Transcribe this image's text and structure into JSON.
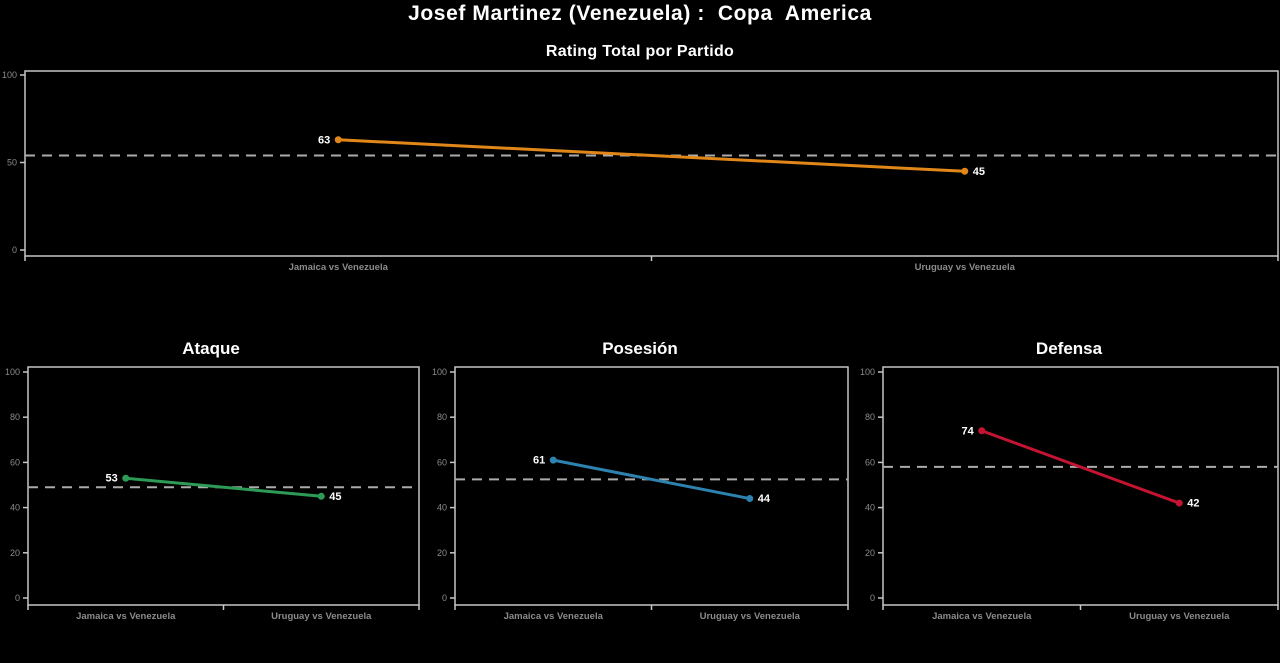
{
  "page": {
    "title": "Josef Martinez (Venezuela) :  Copa  America"
  },
  "style": {
    "background": "#000000",
    "title_color": "#ffffff",
    "axis_color": "#c6c6c6",
    "tick_label_color": "#8b8b8b",
    "dashed_line_color": "#ababab",
    "value_label_color": "#ffffff"
  },
  "chart_data": [
    {
      "id": "rating-total",
      "type": "line",
      "title": "Rating Total por Partido",
      "categories": [
        "Jamaica vs Venezuela",
        "Uruguay vs Venezuela"
      ],
      "series": [
        {
          "name": "Rating Total",
          "values": [
            63,
            45
          ],
          "color": "#e18719"
        }
      ],
      "mean_line": 54,
      "ylim": [
        0,
        100
      ],
      "yticks": [
        0,
        50,
        100
      ],
      "grid": false,
      "legend": "none"
    },
    {
      "id": "ataque",
      "type": "line",
      "title": "Ataque",
      "categories": [
        "Jamaica vs Venezuela",
        "Uruguay vs Venezuela"
      ],
      "series": [
        {
          "name": "Ataque",
          "values": [
            53,
            45
          ],
          "color": "#2d9b55"
        }
      ],
      "mean_line": 49,
      "ylim": [
        0,
        100
      ],
      "yticks": [
        0,
        20,
        40,
        60,
        80,
        100
      ],
      "grid": false,
      "legend": "none"
    },
    {
      "id": "posesion",
      "type": "line",
      "title": "Posesión",
      "categories": [
        "Jamaica vs Venezuela",
        "Uruguay vs Venezuela"
      ],
      "series": [
        {
          "name": "Posesión",
          "values": [
            61,
            44
          ],
          "color": "#2d82af"
        }
      ],
      "mean_line": 52.5,
      "ylim": [
        0,
        100
      ],
      "yticks": [
        0,
        20,
        40,
        60,
        80,
        100
      ],
      "grid": false,
      "legend": "none"
    },
    {
      "id": "defensa",
      "type": "line",
      "title": "Defensa",
      "categories": [
        "Jamaica vs Venezuela",
        "Uruguay vs Venezuela"
      ],
      "series": [
        {
          "name": "Defensa",
          "values": [
            74,
            42
          ],
          "color": "#c41432"
        }
      ],
      "mean_line": 58,
      "ylim": [
        0,
        100
      ],
      "yticks": [
        0,
        20,
        40,
        60,
        80,
        100
      ],
      "grid": false,
      "legend": "none"
    }
  ]
}
